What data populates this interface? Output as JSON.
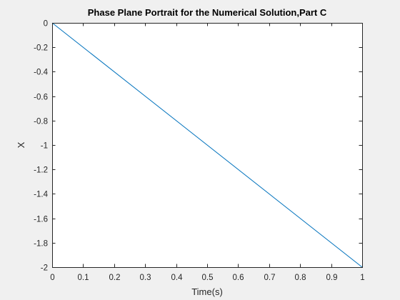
{
  "chart_data": {
    "type": "line",
    "title": "Phase Plane Portrait for the Numerical Solution,Part C",
    "xlabel": "Time(s)",
    "ylabel": "X",
    "xlim": [
      0,
      1
    ],
    "ylim": [
      -2,
      0
    ],
    "xticks": [
      "0",
      "0.1",
      "0.2",
      "0.3",
      "0.4",
      "0.5",
      "0.6",
      "0.7",
      "0.8",
      "0.9",
      "1"
    ],
    "yticks": [
      "0",
      "-0.2",
      "-0.4",
      "-0.6",
      "-0.8",
      "-1",
      "-1.2",
      "-1.4",
      "-1.6",
      "-1.8",
      "-2"
    ],
    "grid": false,
    "series": [
      {
        "x": [
          0,
          1
        ],
        "y": [
          0,
          -2
        ],
        "color": "#0072bd"
      }
    ]
  },
  "colors": {
    "figure_background": "#f0f0f0",
    "axes_background": "#ffffff",
    "axes_color": "#262626"
  }
}
